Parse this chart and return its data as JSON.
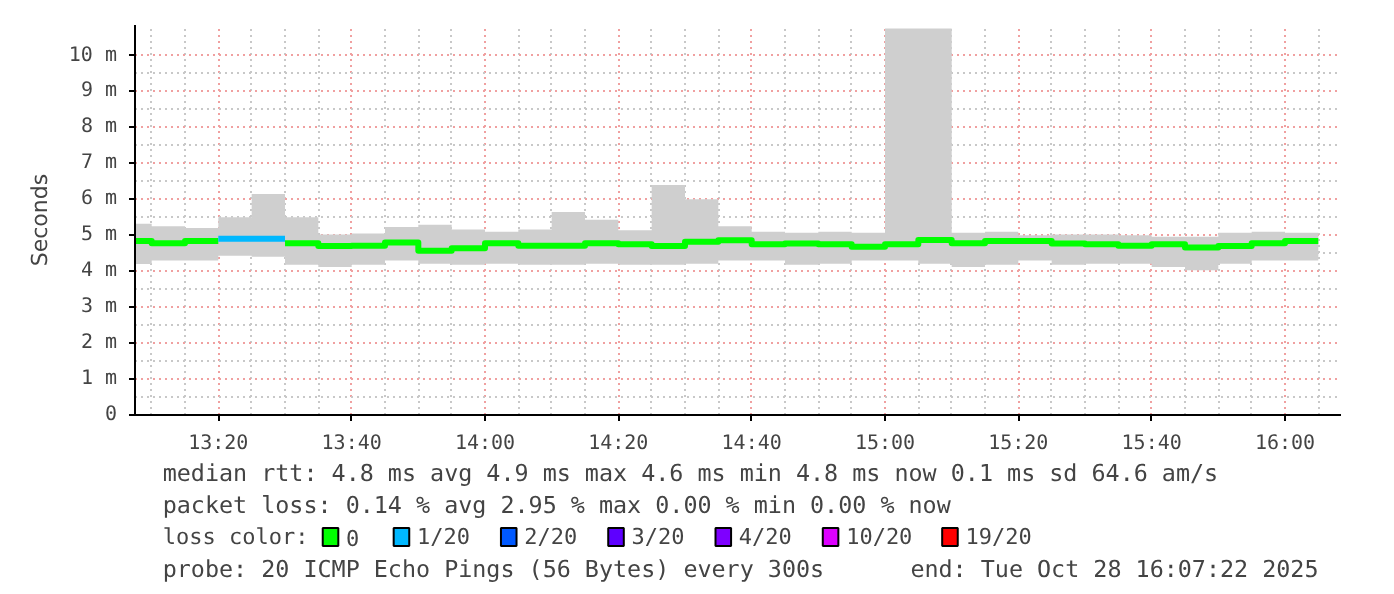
{
  "chart_data": {
    "type": "step",
    "ylabel": "Seconds",
    "legend_title": "loss color:",
    "legend": "bottom",
    "grid": true,
    "x": [
      13.125,
      13.1667,
      13.25,
      13.3333,
      13.4167,
      13.5,
      13.5833,
      13.6667,
      13.75,
      13.8333,
      13.9167,
      14,
      14.0833,
      14.1667,
      14.25,
      14.3333,
      14.4167,
      14.5,
      14.5833,
      14.6667,
      14.75,
      14.8333,
      14.9167,
      15,
      15.0833,
      15.1667,
      15.25,
      15.3333,
      15.4167,
      15.5,
      15.5833,
      15.6667,
      15.75,
      15.8333,
      15.9167,
      16,
      16.0833
    ],
    "xlim": [
      13.125,
      16.14
    ],
    "xticks": [
      {
        "value": 13.3333,
        "label": "13:20"
      },
      {
        "value": 13.6667,
        "label": "13:40"
      },
      {
        "value": 14,
        "label": "14:00"
      },
      {
        "value": 14.3333,
        "label": "14:20"
      },
      {
        "value": 14.6667,
        "label": "14:40"
      },
      {
        "value": 15,
        "label": "15:00"
      },
      {
        "value": 15.3333,
        "label": "15:20"
      },
      {
        "value": 15.6667,
        "label": "15:40"
      },
      {
        "value": 16,
        "label": "16:00"
      }
    ],
    "ylim": [
      0,
      10.85
    ],
    "yticks": [
      0,
      {
        "value": 1,
        "label": "1 m"
      },
      {
        "value": 2,
        "label": "2 m"
      },
      {
        "value": 3,
        "label": "3 m"
      },
      {
        "value": 4,
        "label": "4 m"
      },
      {
        "value": 5,
        "label": "5 m"
      },
      {
        "value": 6,
        "label": "6 m"
      },
      {
        "value": 7,
        "label": "7 m"
      },
      {
        "value": 8,
        "label": "8 m"
      },
      {
        "value": 9,
        "label": "9 m"
      },
      {
        "value": 10,
        "label": "10 m"
      }
    ],
    "series": [
      {
        "name": "0",
        "color": "#00ff00",
        "values": [
          4.84,
          4.78,
          4.84,
          null,
          null,
          4.78,
          4.7,
          4.71,
          4.8,
          4.57,
          4.64,
          4.78,
          4.71,
          4.71,
          4.78,
          4.75,
          4.7,
          4.82,
          4.86,
          4.75,
          4.77,
          4.75,
          4.68,
          4.75,
          4.87,
          4.78,
          4.84,
          4.84,
          4.77,
          4.75,
          4.71,
          4.75,
          4.66,
          4.7,
          4.78,
          4.84,
          4.84
        ],
        "lower": [
          4.2,
          4.3,
          4.3,
          4.43,
          4.4,
          4.18,
          4.12,
          4.18,
          4.3,
          4.21,
          4.18,
          4.21,
          4.18,
          4.18,
          4.21,
          4.18,
          4.18,
          4.21,
          4.3,
          4.3,
          4.18,
          4.21,
          4.3,
          4.3,
          4.21,
          4.12,
          4.18,
          4.3,
          4.18,
          4.21,
          4.21,
          4.12,
          4.03,
          4.21,
          4.3,
          4.3,
          4.3
        ],
        "upper": [
          5.32,
          5.25,
          5.2,
          5.5,
          6.15,
          5.5,
          5.02,
          5.05,
          5.23,
          5.29,
          5.16,
          5.1,
          5.16,
          5.65,
          5.43,
          5.14,
          6.4,
          6.0,
          5.25,
          5.1,
          5.07,
          5.1,
          5.07,
          10.75,
          10.75,
          5.07,
          5.1,
          5.0,
          5.02,
          5.02,
          5.0,
          4.96,
          4.96,
          5.07,
          5.1,
          5.07,
          5.07
        ]
      },
      {
        "name": "1/20",
        "color": "#00b8ff",
        "x": [
          13.3333,
          13.5
        ],
        "values": [
          4.9,
          4.9
        ]
      },
      {
        "name": "2/20",
        "color": "#0059ff",
        "values": [
          null,
          null,
          null,
          null,
          null,
          null,
          null,
          null,
          null,
          null,
          null,
          null,
          null,
          null,
          null,
          null,
          null,
          null,
          null,
          null,
          null,
          null,
          null,
          null,
          null,
          null,
          null,
          null,
          null,
          null,
          null,
          null,
          null,
          null,
          null,
          null,
          null
        ]
      },
      {
        "name": "3/20",
        "color": "#5e00ff",
        "values": [
          null,
          null,
          null,
          null,
          null,
          null,
          null,
          null,
          null,
          null,
          null,
          null,
          null,
          null,
          null,
          null,
          null,
          null,
          null,
          null,
          null,
          null,
          null,
          null,
          null,
          null,
          null,
          null,
          null,
          null,
          null,
          null,
          null,
          null,
          null,
          null,
          null
        ]
      },
      {
        "name": "4/20",
        "color": "#7e00ff",
        "values": [
          null,
          null,
          null,
          null,
          null,
          null,
          null,
          null,
          null,
          null,
          null,
          null,
          null,
          null,
          null,
          null,
          null,
          null,
          null,
          null,
          null,
          null,
          null,
          null,
          null,
          null,
          null,
          null,
          null,
          null,
          null,
          null,
          null,
          null,
          null,
          null,
          null
        ]
      },
      {
        "name": "10/20",
        "color": "#dd00ff",
        "values": [
          null,
          null,
          null,
          null,
          null,
          null,
          null,
          null,
          null,
          null,
          null,
          null,
          null,
          null,
          null,
          null,
          null,
          null,
          null,
          null,
          null,
          null,
          null,
          null,
          null,
          null,
          null,
          null,
          null,
          null,
          null,
          null,
          null,
          null,
          null,
          null,
          null
        ]
      },
      {
        "name": "19/20",
        "color": "#ff0000",
        "values": [
          null,
          null,
          null,
          null,
          null,
          null,
          null,
          null,
          null,
          null,
          null,
          null,
          null,
          null,
          null,
          null,
          null,
          null,
          null,
          null,
          null,
          null,
          null,
          null,
          null,
          null,
          null,
          null,
          null,
          null,
          null,
          null,
          null,
          null,
          null,
          null,
          null
        ]
      }
    ],
    "annotations": [
      "median rtt:  4.8 ms avg  4.9 ms max  4.6 ms min  4.8 ms now  0.1 ms sd  64.6   am/s",
      "packet loss: 0.14 % avg  2.95 % max  0.00 % min  0.00 % now",
      "probe:       20 ICMP Echo Pings (56 Bytes) every 300s",
      "end: Tue Oct 28 16:07:22 2025"
    ]
  }
}
